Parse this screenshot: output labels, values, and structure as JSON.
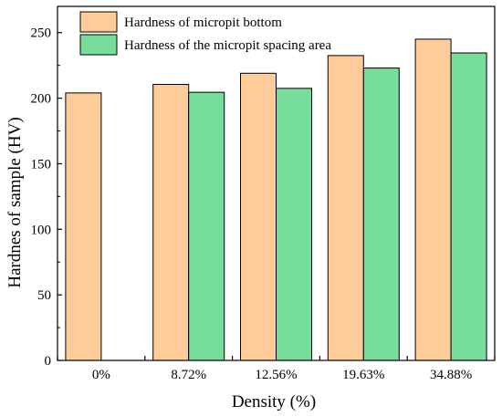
{
  "chart_data": {
    "type": "bar",
    "xlabel": "Density (%)",
    "ylabel": "Hardnes of sample (HV)",
    "categories": [
      "0%",
      "8.72%",
      "12.56%",
      "19.63%",
      "34.88%"
    ],
    "ylim": [
      0,
      270
    ],
    "yticks": [
      0,
      50,
      100,
      150,
      200,
      250
    ],
    "grid": false,
    "legend_position": "top-left",
    "series": [
      {
        "name": "Hardness of micropit bottom",
        "color": "#fdcc99",
        "values": [
          204,
          210.5,
          219,
          232.5,
          245
        ]
      },
      {
        "name": "Hardness of the micropit spacing area",
        "color": "#77dd9b",
        "values": [
          null,
          204.5,
          207.5,
          223,
          234.5
        ]
      }
    ]
  }
}
